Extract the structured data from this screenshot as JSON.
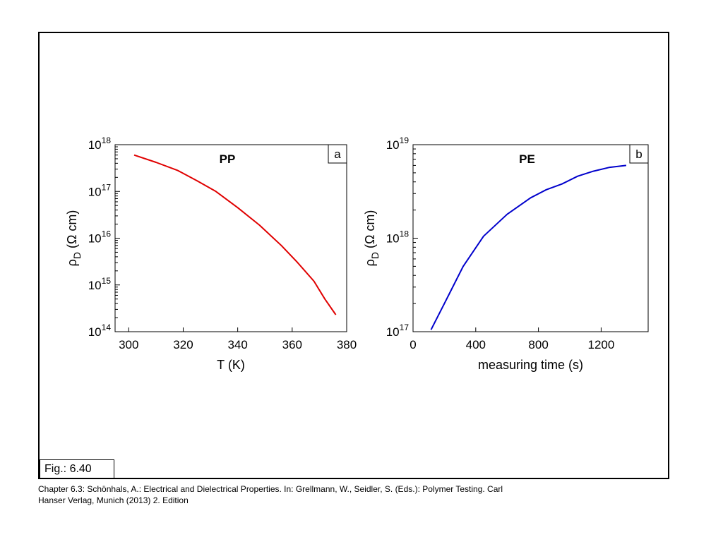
{
  "figure": {
    "label": "Fig.: 6.40",
    "caption_line1": "Chapter 6.3: Schönhals, A.: Electrical and Dielectrical Properties. In: Grellmann, W., Seidler, S. (Eds.): Polymer Testing. Carl",
    "caption_line2": "Hanser Verlag, Munich (2013) 2. Edition"
  },
  "chart_data": [
    {
      "type": "line",
      "panel_label": "a",
      "title": "PP",
      "xlabel": "T (K)",
      "ylabel": "ρD (Ω cm)",
      "ylabel_main": "ρ",
      "ylabel_sub": "D",
      "ylabel_rest": "(Ω cm)",
      "yscale": "log",
      "xlim": [
        295,
        380
      ],
      "ylim_exp": [
        14,
        18
      ],
      "xticks": [
        300,
        320,
        340,
        360,
        380
      ],
      "yticks": [
        "10^14",
        "10^15",
        "10^16",
        "10^17",
        "10^18"
      ],
      "yticks_exp": [
        14,
        15,
        16,
        17,
        18
      ],
      "color": "#e00000",
      "series": [
        {
          "x": [
            302,
            310,
            318,
            325,
            332,
            340,
            348,
            356,
            362,
            368,
            372,
            376
          ],
          "y": [
            6e+17,
            4.2e+17,
            2.8e+17,
            1.7e+17,
            1e+17,
            4.5e+16,
            1.9e+16,
            7000000000000000.0,
            3000000000000000.0,
            1200000000000000.0,
            500000000000000.0,
            230000000000000.0
          ]
        }
      ],
      "grid": false
    },
    {
      "type": "line",
      "panel_label": "b",
      "title": "PE",
      "xlabel": "measuring time (s)",
      "ylabel": "ρD (Ω cm)",
      "ylabel_main": "ρ",
      "ylabel_sub": "D",
      "ylabel_rest": "(Ω cm)",
      "yscale": "log",
      "xlim": [
        0,
        1500
      ],
      "ylim_exp": [
        17,
        19
      ],
      "xticks": [
        0,
        400,
        800,
        1200
      ],
      "yticks": [
        "10^17",
        "10^18",
        "10^19"
      ],
      "yticks_exp": [
        17,
        18,
        19
      ],
      "color": "#0000cc",
      "series": [
        {
          "x": [
            115,
            200,
            320,
            450,
            600,
            750,
            850,
            950,
            1050,
            1150,
            1250,
            1360
          ],
          "y": [
            1.05e+17,
            2e+17,
            5e+17,
            1.05e+18,
            1.8e+18,
            2.7e+18,
            3.3e+18,
            3.8e+18,
            4.6e+18,
            5.2e+18,
            5.7e+18,
            6e+18
          ]
        }
      ],
      "grid": false
    }
  ]
}
